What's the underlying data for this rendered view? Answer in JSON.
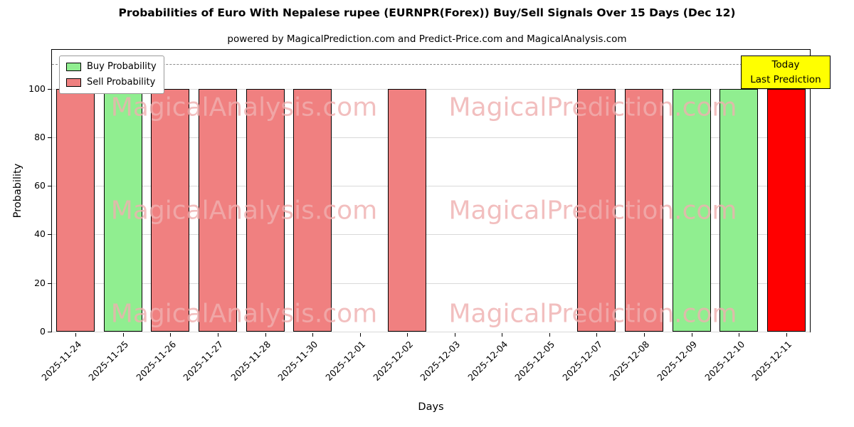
{
  "chart_data": {
    "type": "bar",
    "title": "Probabilities of Euro With Nepalese rupee (EURNPR(Forex)) Buy/Sell Signals Over 15 Days (Dec 12)",
    "subtitle": "powered by MagicalPrediction.com and Predict-Price.com and MagicalAnalysis.com",
    "xlabel": "Days",
    "ylabel": "Probability",
    "ylim": [
      0,
      116
    ],
    "yticks": [
      0,
      20,
      40,
      60,
      80,
      100
    ],
    "grid": true,
    "dashed_line_y": 110,
    "legend_position": "upper left",
    "legend": [
      {
        "label": "Buy Probability",
        "color_key": "buy"
      },
      {
        "label": "Sell Probability",
        "color_key": "sell"
      }
    ],
    "colors": {
      "buy": "#90EE90",
      "sell": "#F08080",
      "today": "#FF0000",
      "grid": "#d9d9d9",
      "dashed_line": "#8a8a8a",
      "annotation_bg": "#FFFF00",
      "watermark": "#F0B0B0"
    },
    "categories": [
      "2025-11-24",
      "2025-11-25",
      "2025-11-26",
      "2025-11-27",
      "2025-11-28",
      "2025-11-30",
      "2025-12-01",
      "2025-12-02",
      "2025-12-03",
      "2025-12-04",
      "2025-12-05",
      "2025-12-07",
      "2025-12-08",
      "2025-12-09",
      "2025-12-10",
      "2025-12-11"
    ],
    "bars": [
      {
        "date": "2025-11-24",
        "value": 100,
        "kind": "sell"
      },
      {
        "date": "2025-11-25",
        "value": 100,
        "kind": "buy"
      },
      {
        "date": "2025-11-26",
        "value": 100,
        "kind": "sell"
      },
      {
        "date": "2025-11-27",
        "value": 100,
        "kind": "sell"
      },
      {
        "date": "2025-11-28",
        "value": 100,
        "kind": "sell"
      },
      {
        "date": "2025-11-30",
        "value": 100,
        "kind": "sell"
      },
      {
        "date": "2025-12-01",
        "value": 0,
        "kind": "none"
      },
      {
        "date": "2025-12-02",
        "value": 100,
        "kind": "sell"
      },
      {
        "date": "2025-12-03",
        "value": 0,
        "kind": "none"
      },
      {
        "date": "2025-12-04",
        "value": 0,
        "kind": "none"
      },
      {
        "date": "2025-12-05",
        "value": 0,
        "kind": "none"
      },
      {
        "date": "2025-12-07",
        "value": 100,
        "kind": "sell"
      },
      {
        "date": "2025-12-08",
        "value": 100,
        "kind": "sell"
      },
      {
        "date": "2025-12-09",
        "value": 100,
        "kind": "buy"
      },
      {
        "date": "2025-12-10",
        "value": 100,
        "kind": "buy"
      },
      {
        "date": "2025-12-11",
        "value": 100,
        "kind": "today"
      }
    ],
    "annotation": {
      "lines": [
        "Today",
        "Last Prediction"
      ]
    },
    "watermarks": {
      "left": "MagicalAnalysis.com",
      "right": "MagicalPrediction.com"
    }
  }
}
